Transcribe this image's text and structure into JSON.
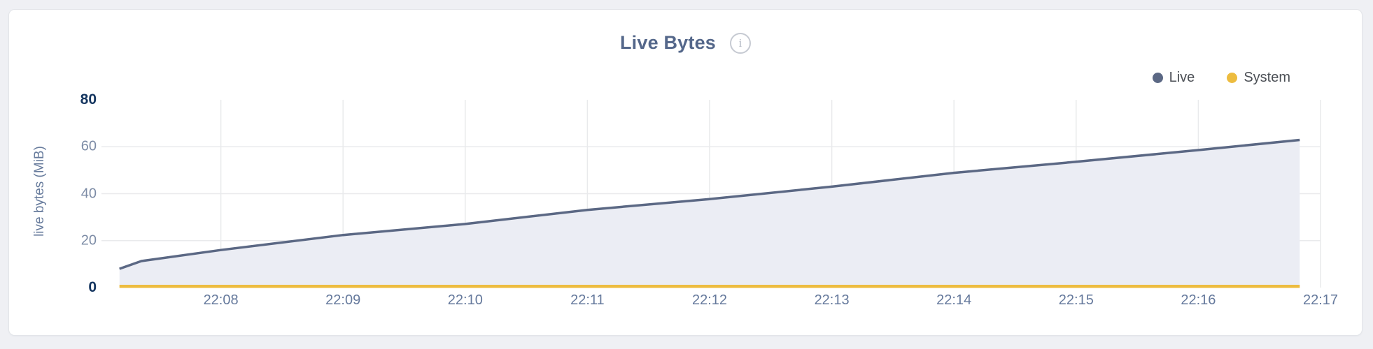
{
  "card": {
    "title": "Live Bytes",
    "info_icon": "i"
  },
  "colors": {
    "live": "#5b6884",
    "system": "#edbc3f",
    "area_fill": "#ebedf4",
    "grid": "#e9eaec",
    "title_text": "#54678a",
    "page_background": "#eff0f4",
    "card_background": "#ffffff"
  },
  "chart_data": {
    "type": "area",
    "title": "Live Bytes",
    "ylabel": "live bytes (MiB)",
    "xlabel": "",
    "x_axis_unit": "time (HH:MM)",
    "x_domain_minutes_after_2207": [
      0,
      10
    ],
    "x_range_time": [
      "22:07",
      "22:17"
    ],
    "ylim": [
      0,
      80
    ],
    "grid": "on",
    "legend_position": "top-right",
    "xticks": [
      {
        "t": 1,
        "label": "22:08"
      },
      {
        "t": 2,
        "label": "22:09"
      },
      {
        "t": 3,
        "label": "22:10"
      },
      {
        "t": 4,
        "label": "22:11"
      },
      {
        "t": 5,
        "label": "22:12"
      },
      {
        "t": 6,
        "label": "22:13"
      },
      {
        "t": 7,
        "label": "22:14"
      },
      {
        "t": 8,
        "label": "22:15"
      },
      {
        "t": 9,
        "label": "22:16"
      },
      {
        "t": 10,
        "label": "22:17"
      }
    ],
    "yticks": [
      {
        "v": 0,
        "label": "0",
        "strong": true,
        "grid": false
      },
      {
        "v": 20,
        "label": "20",
        "strong": false,
        "grid": true
      },
      {
        "v": 40,
        "label": "40",
        "strong": false,
        "grid": true
      },
      {
        "v": 60,
        "label": "60",
        "strong": false,
        "grid": true
      },
      {
        "v": 80,
        "label": "80",
        "strong": true,
        "grid": false
      }
    ],
    "series": [
      {
        "name": "Live",
        "color": "#5b6884",
        "fill": "#ebedf4",
        "stroke_width": 3.5,
        "points_t_mib": [
          [
            0.17,
            8.0
          ],
          [
            0.35,
            11.3
          ],
          [
            1,
            16.0
          ],
          [
            2,
            22.4
          ],
          [
            3,
            27.1
          ],
          [
            4,
            33.1
          ],
          [
            5,
            37.7
          ],
          [
            6,
            43.0
          ],
          [
            7,
            48.9
          ],
          [
            8,
            53.6
          ],
          [
            9,
            58.6
          ],
          [
            9.83,
            62.9
          ]
        ]
      },
      {
        "name": "System",
        "color": "#edbc3f",
        "fill": null,
        "stroke_width": 4.5,
        "points_t_mib": [
          [
            0.17,
            0.5
          ],
          [
            9.83,
            0.5
          ]
        ]
      }
    ]
  }
}
